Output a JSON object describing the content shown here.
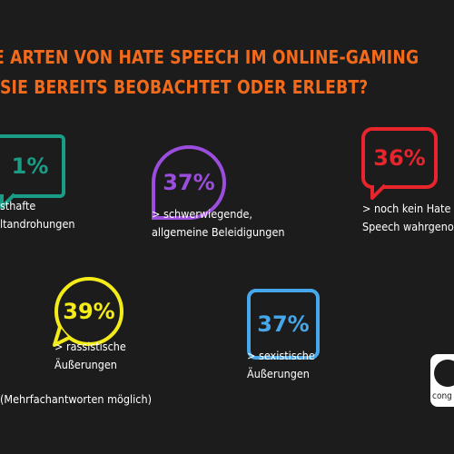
{
  "title": {
    "line1": "E ARTEN VON HATE SPEECH IM ONLINE-GAMING",
    "line2": "SIE BEREITS BEOBACHTET ODER ERLEBT?"
  },
  "colors": {
    "background": "#1c1c1c",
    "title": "#f26a1b",
    "teal": "#1a9c85",
    "purple": "#9b4dde",
    "red": "#e8242c",
    "yellow": "#f3ec19",
    "blue": "#46a7ea"
  },
  "items": [
    {
      "value": "1%",
      "label_lines": [
        "sthafte",
        "ltandrohungen"
      ],
      "color_name": "teal",
      "icon": "speech-bubble-icon"
    },
    {
      "value": "37%",
      "label_lines": [
        "> schwerwiegende,",
        "allgemeine Beleidigungen"
      ],
      "color_name": "purple",
      "icon": "teardrop-bubble-icon"
    },
    {
      "value": "36%",
      "label_lines": [
        "> noch kein Hate",
        "Speech wahrgenom"
      ],
      "color_name": "red",
      "icon": "speech-bubble-icon"
    },
    {
      "value": "39%",
      "label_lines": [
        "> rassistische",
        "Äußerungen"
      ],
      "color_name": "yellow",
      "icon": "circle-bubble-icon"
    },
    {
      "value": "37%",
      "label_lines": [
        "> sexistische",
        "Äußerungen"
      ],
      "color_name": "blue",
      "icon": "rounded-square-icon"
    }
  ],
  "footnote": "(Mehrfachantworten möglich)",
  "logo": {
    "text": "cong"
  }
}
